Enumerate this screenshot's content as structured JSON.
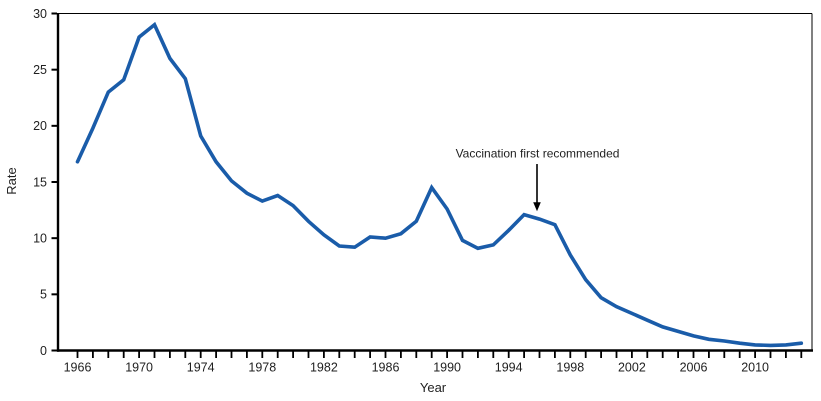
{
  "chart_data": {
    "type": "line",
    "xlabel": "Year",
    "ylabel": "Rate",
    "x": [
      1966,
      1967,
      1968,
      1969,
      1970,
      1971,
      1972,
      1973,
      1974,
      1975,
      1976,
      1977,
      1978,
      1979,
      1980,
      1981,
      1982,
      1983,
      1984,
      1985,
      1986,
      1987,
      1988,
      1989,
      1990,
      1991,
      1992,
      1993,
      1994,
      1995,
      1996,
      1997,
      1998,
      1999,
      2000,
      2001,
      2002,
      2003,
      2004,
      2005,
      2006,
      2007,
      2008,
      2009,
      2010,
      2011,
      2012,
      2013
    ],
    "values": [
      16.8,
      19.8,
      23.0,
      24.1,
      27.9,
      29.0,
      26.0,
      24.2,
      19.1,
      16.8,
      15.1,
      14.0,
      13.3,
      13.8,
      12.9,
      11.5,
      10.3,
      9.3,
      9.2,
      10.1,
      10.0,
      10.4,
      11.5,
      14.5,
      12.6,
      9.8,
      9.1,
      9.4,
      10.7,
      12.1,
      11.7,
      11.2,
      8.5,
      6.3,
      4.7,
      3.9,
      3.3,
      2.7,
      2.1,
      1.7,
      1.3,
      1.0,
      0.85,
      0.65,
      0.5,
      0.45,
      0.5,
      0.65
    ],
    "ylim": [
      0,
      30
    ],
    "yticks": [
      0,
      5,
      10,
      15,
      20,
      25,
      30
    ],
    "xtick_label_years": [
      1966,
      1970,
      1974,
      1978,
      1982,
      1986,
      1990,
      1994,
      1998,
      2002,
      2006,
      2010
    ],
    "x_minor_tick_every_years": 1,
    "grid": false,
    "legend": "none",
    "line_color": "#1a5ca9",
    "axis_color": "#000000",
    "text_color": "#1f1f1f",
    "annotation": {
      "text": "Vaccination first recommended",
      "target_year": 1996,
      "arrow_start_rate": 16.6,
      "arrow_end_rate": 12.4
    }
  }
}
